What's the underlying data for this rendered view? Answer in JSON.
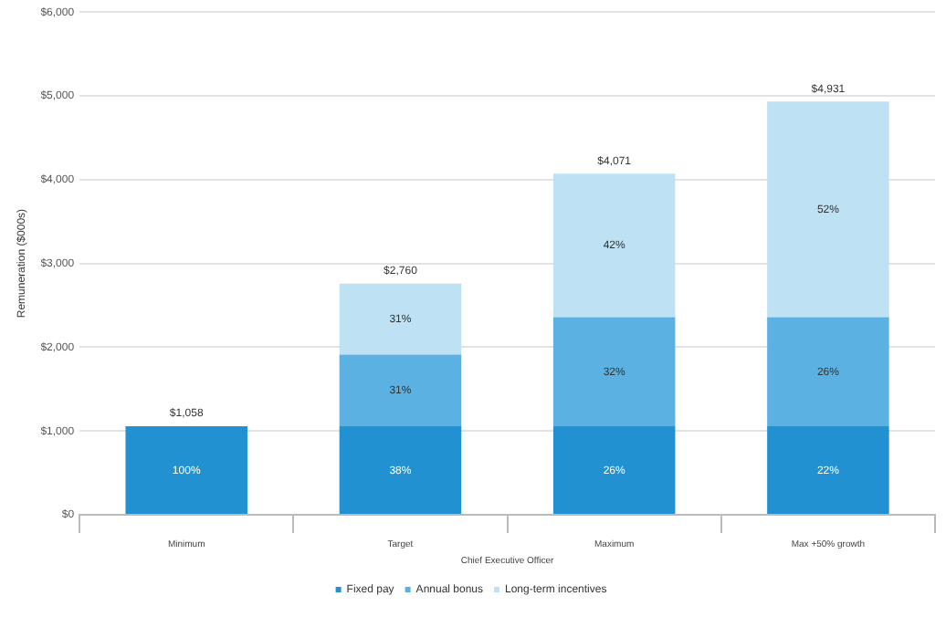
{
  "chart_data": {
    "type": "bar",
    "stacked": true,
    "xlabel": "Chief Executive Officer",
    "ylabel": "Remuneration ($000s)",
    "categories": [
      "Minimum",
      "Target",
      "Maximum",
      "Max +50% growth"
    ],
    "series": [
      {
        "name": "Fixed pay",
        "color": "#2291d1",
        "values": [
          1058,
          1058,
          1058,
          1058
        ]
      },
      {
        "name": "Annual bonus",
        "color": "#5cb1e3",
        "values": [
          null,
          855,
          1300,
          1300
        ]
      },
      {
        "name": "Long-term incentives",
        "color": "#bfe1f4",
        "values": [
          null,
          847,
          1713,
          2573
        ]
      }
    ],
    "annotations": [
      "100%",
      "38%",
      "31%",
      "31%",
      "26%",
      "32%",
      "42%",
      "22%",
      "26%",
      "52%"
    ],
    "totals": [
      "$1,058",
      "$2,760",
      "$4,071",
      "$4,931"
    ],
    "ylim": [
      0,
      6000
    ],
    "yticks": [
      {
        "value": 0,
        "label": "$0"
      },
      {
        "value": 1000,
        "label": "$1,000"
      },
      {
        "value": 2000,
        "label": "$2,000"
      },
      {
        "value": 3000,
        "label": "$3,000"
      },
      {
        "value": 4000,
        "label": "$4,000"
      },
      {
        "value": 5000,
        "label": "$5,000"
      },
      {
        "value": 6000,
        "label": "$6,000"
      }
    ],
    "grid": "y",
    "legend": "bottom"
  }
}
